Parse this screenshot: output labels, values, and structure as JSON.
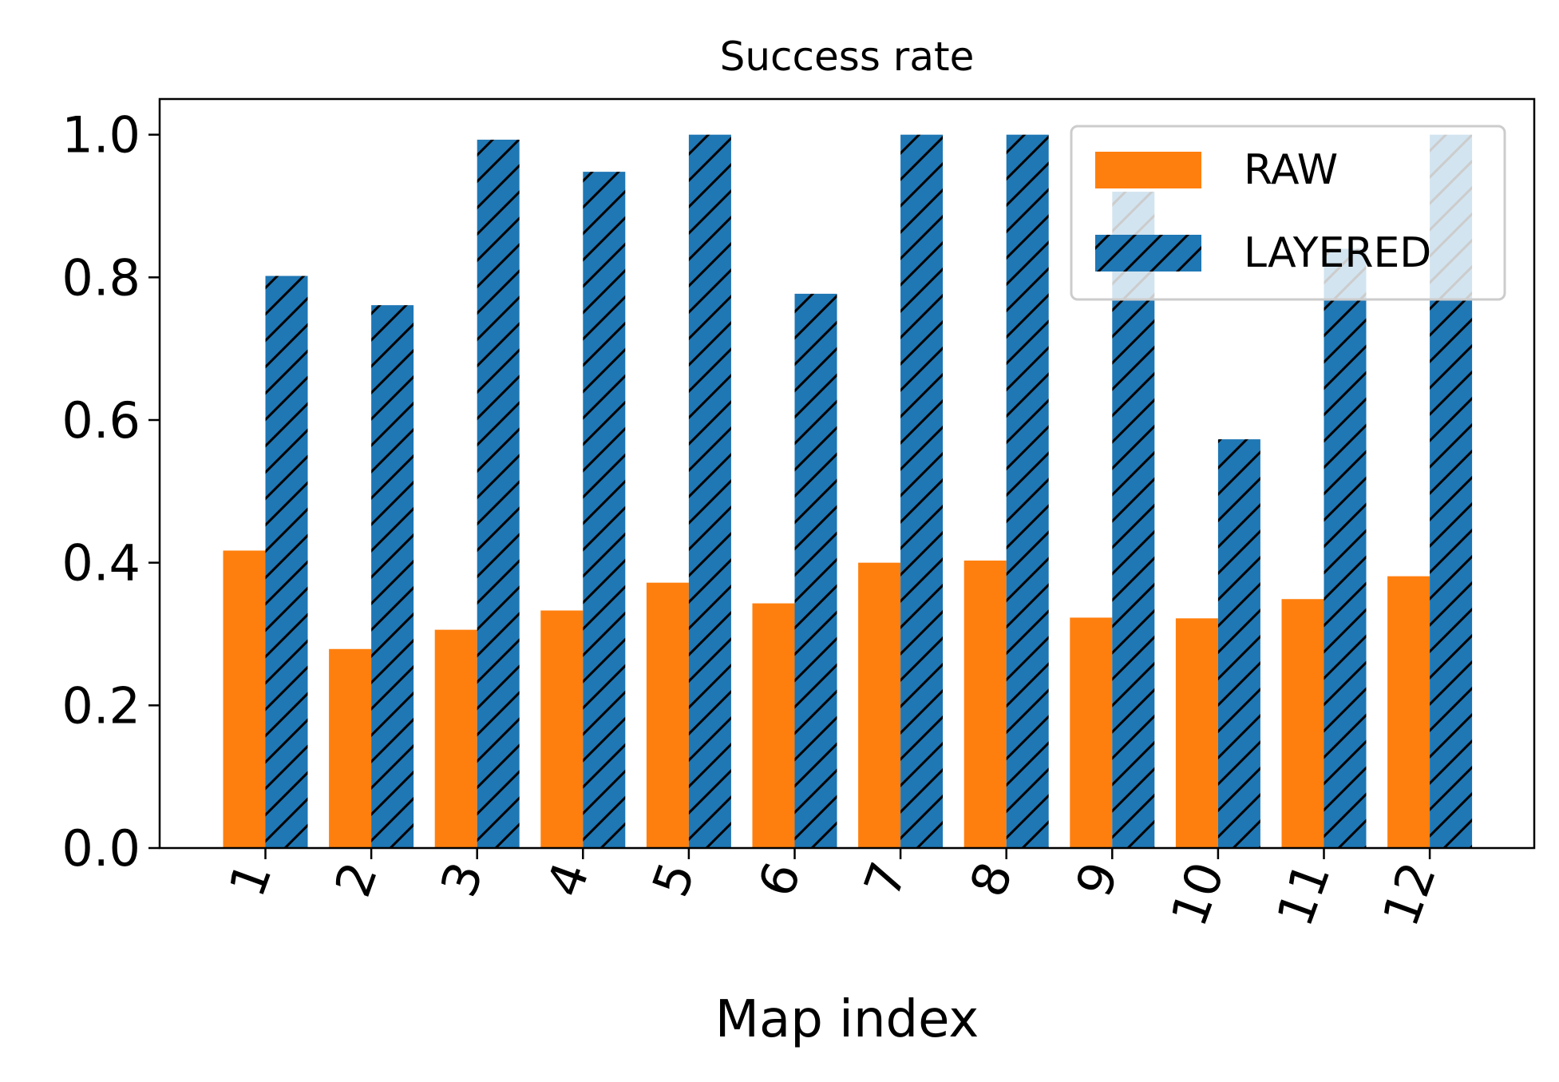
{
  "chart_data": {
    "type": "bar",
    "title": "Success rate",
    "xlabel": "Map index",
    "ylabel": "",
    "categories": [
      "1",
      "2",
      "3",
      "4",
      "5",
      "6",
      "7",
      "8",
      "9",
      "10",
      "11",
      "12"
    ],
    "series": [
      {
        "name": "RAW",
        "color": "#ff7f0e",
        "hatch": "none",
        "values": [
          0.417,
          0.279,
          0.306,
          0.333,
          0.372,
          0.343,
          0.4,
          0.403,
          0.323,
          0.322,
          0.349,
          0.381
        ]
      },
      {
        "name": "LAYERED",
        "color": "#1f77b4",
        "hatch": "diagonal",
        "values": [
          0.802,
          0.761,
          0.993,
          0.948,
          1.0,
          0.777,
          1.0,
          1.0,
          0.92,
          0.573,
          0.84,
          1.0
        ]
      }
    ],
    "ylim": [
      0,
      1.05
    ],
    "yticks": [
      "0.0",
      "0.2",
      "0.4",
      "0.6",
      "0.8",
      "1.0"
    ],
    "xtick_rotation": "rotated ~70 degrees",
    "grid": false,
    "legend_position": "upper-right"
  }
}
